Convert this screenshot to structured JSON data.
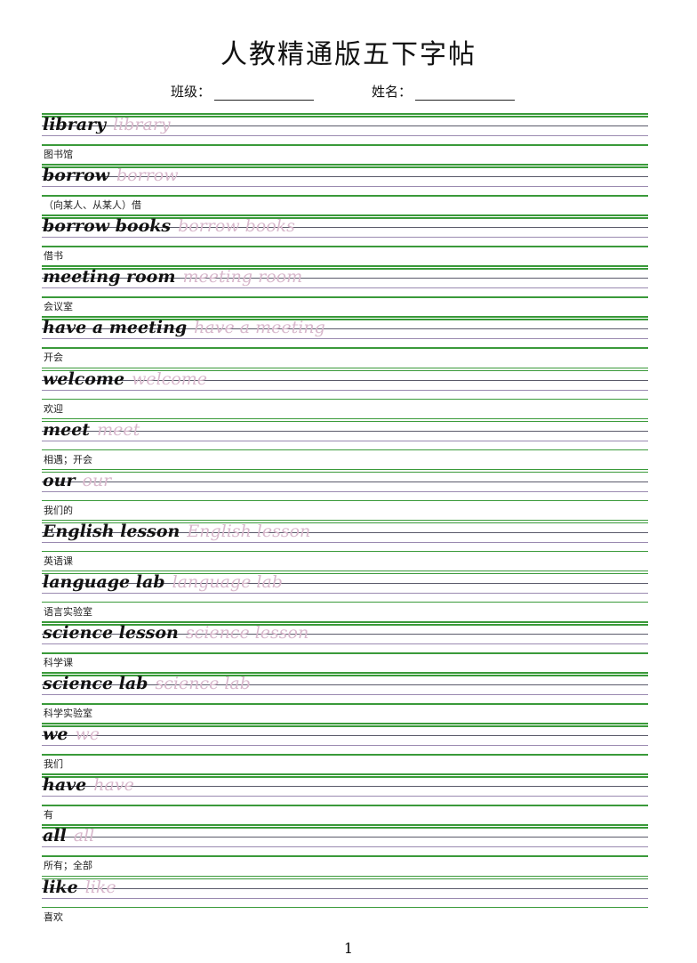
{
  "title": "人教精通版五下字帖",
  "fields": {
    "class_label": "班级：",
    "name_label": "姓名："
  },
  "entries": [
    {
      "en": "library",
      "cn": "图书馆"
    },
    {
      "en": "borrow",
      "cn": "（向某人、从某人）借"
    },
    {
      "en": "borrow books",
      "cn": "借书"
    },
    {
      "en": "meeting room",
      "cn": "会议室"
    },
    {
      "en": "have a meeting",
      "cn": "开会"
    },
    {
      "en": "welcome",
      "cn": "欢迎"
    },
    {
      "en": "meet",
      "cn": "相遇；开会"
    },
    {
      "en": "our",
      "cn": "我们的"
    },
    {
      "en": "English lesson",
      "cn": "英语课"
    },
    {
      "en": "language lab",
      "cn": "语言实验室"
    },
    {
      "en": "science lesson",
      "cn": "科学课"
    },
    {
      "en": "science lab",
      "cn": "科学实验室"
    },
    {
      "en": "we",
      "cn": "我们"
    },
    {
      "en": "have",
      "cn": "有"
    },
    {
      "en": "all",
      "cn": "所有；全部"
    },
    {
      "en": "like",
      "cn": "喜欢"
    }
  ],
  "page_number": "1"
}
